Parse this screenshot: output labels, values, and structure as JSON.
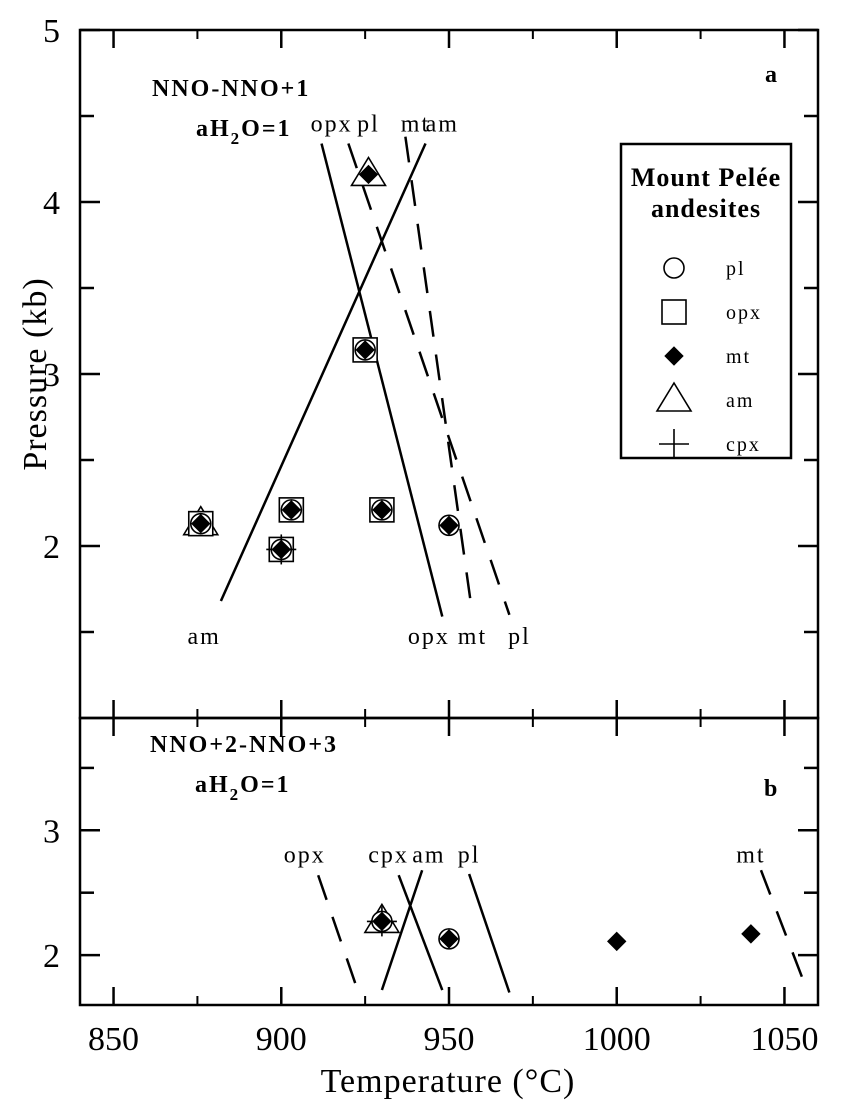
{
  "chart_data": [
    {
      "panel": "a",
      "type": "scatter",
      "panel_label": "a",
      "conditions_line1": "NNO-NNO+1",
      "conditions_line2": "aH",
      "conditions_sub": "2",
      "conditions_tail": "O=1",
      "xlim": [
        840,
        1060
      ],
      "ylim": [
        1,
        5
      ],
      "x_ticks": [
        850,
        900,
        950,
        1000,
        1050
      ],
      "y_tick_labels": [
        "2",
        "3",
        "4",
        "5"
      ],
      "y_ticks": [
        2,
        3,
        4,
        5
      ],
      "ylabel": "Pressure (kb)",
      "legend_title_line1": "Mount Pelée",
      "legend_title_line2": "andesites",
      "legend": [
        {
          "symbol": "circle",
          "label": "pl"
        },
        {
          "symbol": "square",
          "label": "opx"
        },
        {
          "symbol": "diamond",
          "label": "mt"
        },
        {
          "symbol": "triangle",
          "label": "am"
        },
        {
          "symbol": "plus",
          "label": "cpx"
        }
      ],
      "points": [
        {
          "x": 926,
          "y": 4.16,
          "markers": [
            "triangle",
            "diamond"
          ]
        },
        {
          "x": 925,
          "y": 3.14,
          "markers": [
            "square",
            "circle",
            "diamond"
          ]
        },
        {
          "x": 876,
          "y": 2.13,
          "markers": [
            "triangle",
            "square",
            "circle",
            "diamond"
          ]
        },
        {
          "x": 903,
          "y": 2.21,
          "markers": [
            "square",
            "circle",
            "diamond"
          ]
        },
        {
          "x": 930,
          "y": 2.21,
          "markers": [
            "square",
            "circle",
            "diamond"
          ]
        },
        {
          "x": 950,
          "y": 2.12,
          "markers": [
            "circle",
            "diamond"
          ]
        },
        {
          "x": 900,
          "y": 1.98,
          "markers": [
            "square",
            "circle",
            "plus",
            "diamond"
          ]
        }
      ],
      "curves": [
        {
          "label_top": "opx",
          "label_bottom": "opx",
          "style": "solid",
          "points": [
            [
              912,
              4.34
            ],
            [
              948,
              1.59
            ]
          ]
        },
        {
          "label_top": "am",
          "label_bottom": "am",
          "style": "solid",
          "points": [
            [
              882,
              1.68
            ],
            [
              943,
              4.34
            ]
          ]
        },
        {
          "label_top": "pl",
          "label_bottom": "pl",
          "style": "dashed",
          "points": [
            [
              920,
              4.34
            ],
            [
              968,
              1.6
            ]
          ]
        },
        {
          "label_top": "mt",
          "label_bottom": "mt",
          "style": "dashed",
          "points": [
            [
              937,
              4.38
            ],
            [
              957,
              1.6
            ]
          ]
        }
      ],
      "top_labels": [
        {
          "text": "opx",
          "x": 915,
          "y": 4.41
        },
        {
          "text": "pl",
          "x": 926,
          "y": 4.41
        },
        {
          "text": "mt",
          "x": 940,
          "y": 4.41
        },
        {
          "text": "am",
          "x": 948,
          "y": 4.41
        }
      ],
      "bottom_labels": [
        {
          "text": "am",
          "x": 877,
          "y": 1.43
        },
        {
          "text": "opx",
          "x": 944,
          "y": 1.43
        },
        {
          "text": "mt",
          "x": 957,
          "y": 1.43
        },
        {
          "text": "pl",
          "x": 971,
          "y": 1.43
        }
      ]
    },
    {
      "panel": "b",
      "type": "scatter",
      "panel_label": "b",
      "conditions_line1": "NNO+2-NNO+3",
      "conditions_line2": "aH",
      "conditions_sub": "2",
      "conditions_tail": "O=1",
      "xlim": [
        840,
        1060
      ],
      "ylim": [
        1.6,
        3.9
      ],
      "x_ticks": [
        850,
        900,
        950,
        1000,
        1050
      ],
      "x_tick_labels": [
        "850",
        "900",
        "950",
        "1000",
        "1050"
      ],
      "y_tick_labels": [
        "2",
        "3"
      ],
      "y_ticks": [
        2,
        3
      ],
      "xlabel": "Temperature (°C)",
      "points": [
        {
          "x": 930,
          "y": 2.27,
          "markers": [
            "triangle",
            "plus",
            "circle",
            "diamond"
          ]
        },
        {
          "x": 950,
          "y": 2.13,
          "markers": [
            "circle",
            "diamond"
          ]
        },
        {
          "x": 1000,
          "y": 2.11,
          "markers": [
            "diamond"
          ]
        },
        {
          "x": 1040,
          "y": 2.17,
          "markers": [
            "diamond"
          ]
        }
      ],
      "curves": [
        {
          "label": "opx",
          "style": "dashed",
          "points": [
            [
              911,
              2.64
            ],
            [
              923,
              1.7
            ]
          ]
        },
        {
          "label": "cpx",
          "style": "solid",
          "points": [
            [
              935,
              2.64
            ],
            [
              948,
              1.72
            ]
          ]
        },
        {
          "label": "am",
          "style": "solid",
          "points": [
            [
              930,
              1.72
            ],
            [
              942,
              2.68
            ]
          ]
        },
        {
          "label": "pl",
          "style": "solid",
          "points": [
            [
              956,
              2.65
            ],
            [
              968,
              1.7
            ]
          ]
        },
        {
          "label": "mt",
          "style": "dashed",
          "points": [
            [
              1043,
              2.68
            ],
            [
              1057,
              1.7
            ]
          ]
        }
      ],
      "top_labels": [
        {
          "text": "opx",
          "x": 907,
          "y": 2.74
        },
        {
          "text": "cpx",
          "x": 932,
          "y": 2.74
        },
        {
          "text": "am",
          "x": 944,
          "y": 2.74
        },
        {
          "text": "pl",
          "x": 956,
          "y": 2.74
        },
        {
          "text": "mt",
          "x": 1040,
          "y": 2.74
        }
      ]
    }
  ]
}
